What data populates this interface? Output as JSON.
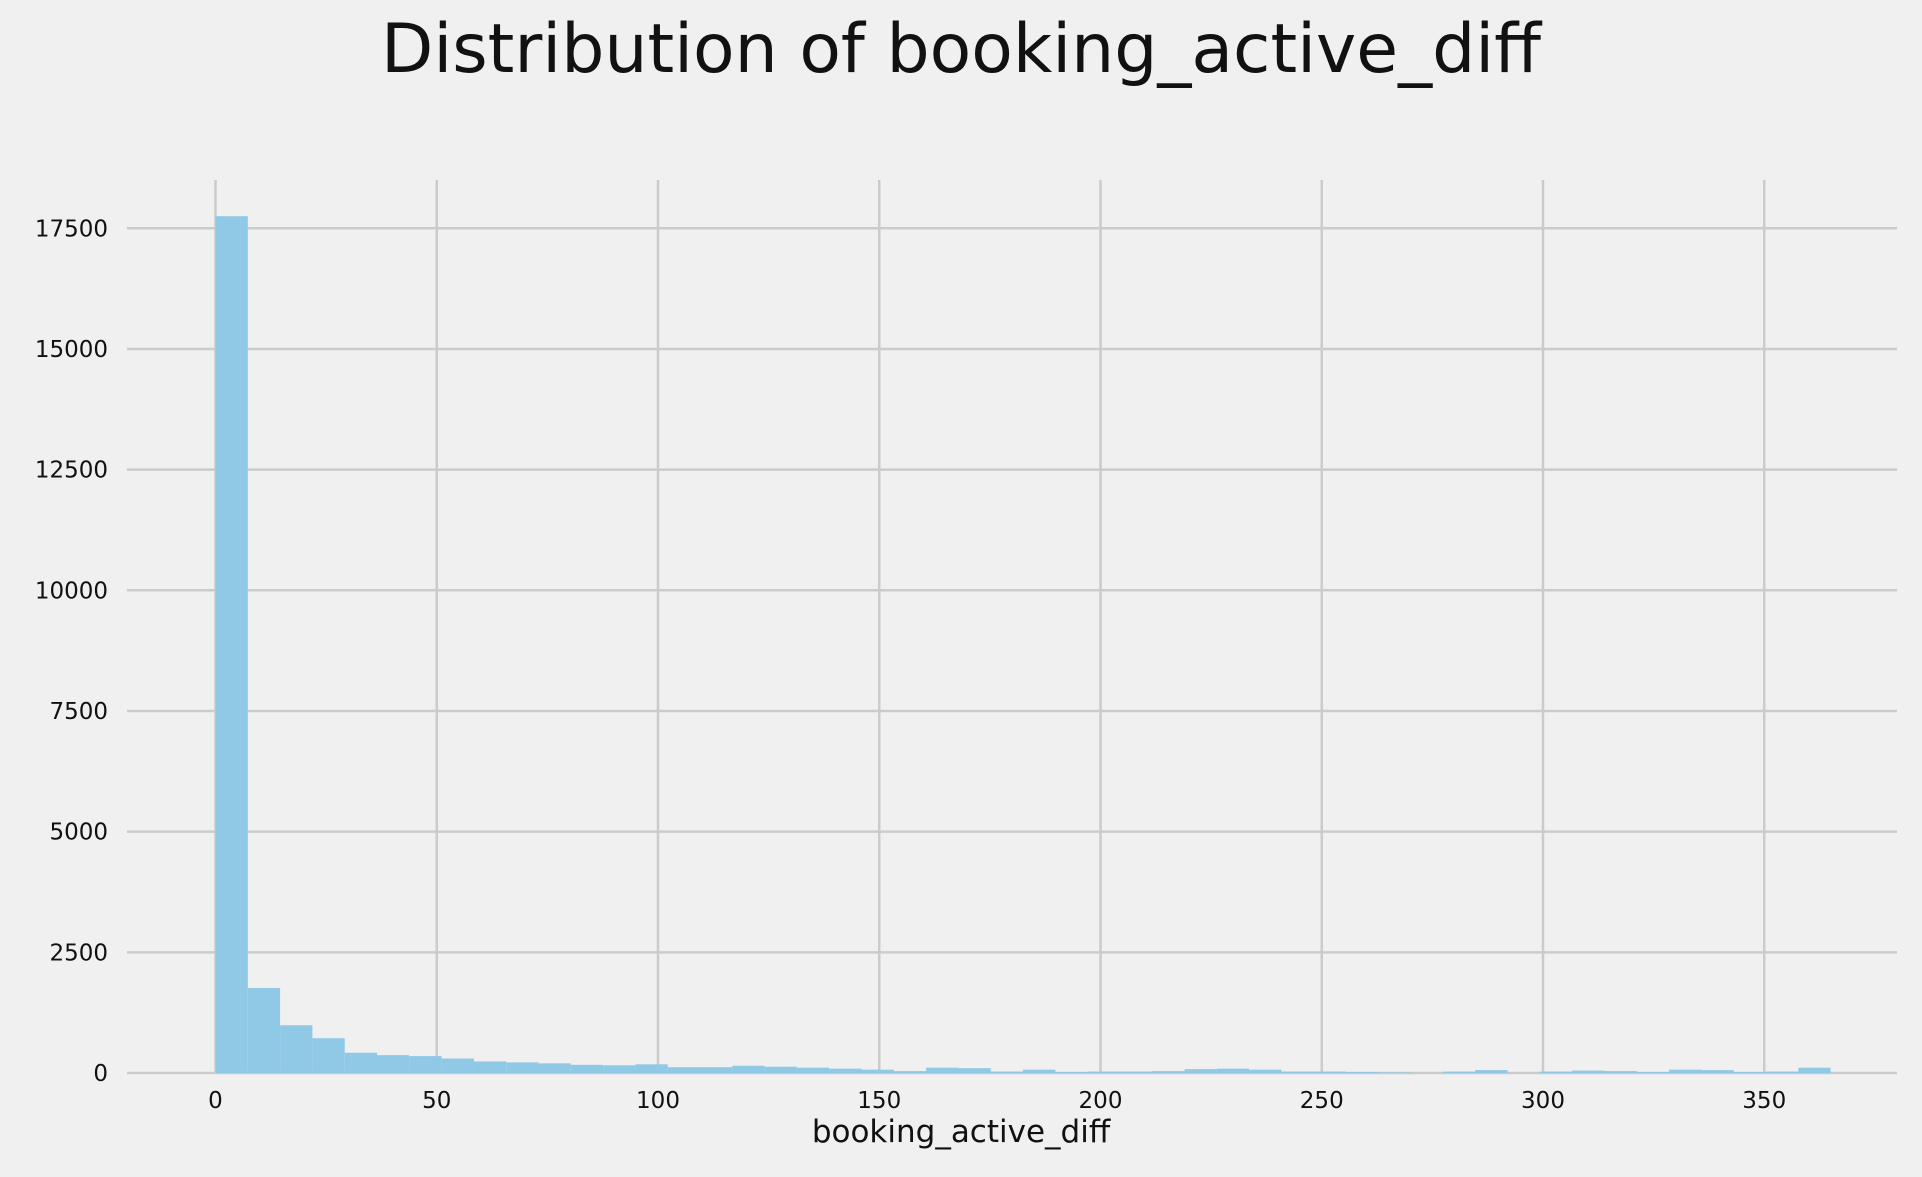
{
  "chart_data": {
    "type": "bar",
    "subtype": "histogram",
    "title": "Distribution of booking_active_diff",
    "xlabel": "booking_active_diff",
    "ylabel": "",
    "xlim": [
      -20,
      380
    ],
    "ylim": [
      0,
      18500
    ],
    "xticks": [
      0,
      50,
      100,
      150,
      200,
      250,
      300,
      350
    ],
    "yticks": [
      0,
      2500,
      5000,
      7500,
      10000,
      12500,
      15000,
      17500
    ],
    "grid": true,
    "bar_color": "#8fc9e6",
    "bins_start": 0,
    "bin_width": 7.3,
    "values": [
      17750,
      1760,
      990,
      720,
      420,
      370,
      350,
      300,
      240,
      220,
      200,
      170,
      160,
      180,
      120,
      120,
      150,
      130,
      110,
      90,
      70,
      40,
      110,
      100,
      30,
      70,
      20,
      30,
      30,
      40,
      80,
      90,
      70,
      30,
      30,
      20,
      10,
      0,
      30,
      60,
      0,
      30,
      50,
      40,
      20,
      70,
      60,
      20,
      30,
      110
    ]
  }
}
